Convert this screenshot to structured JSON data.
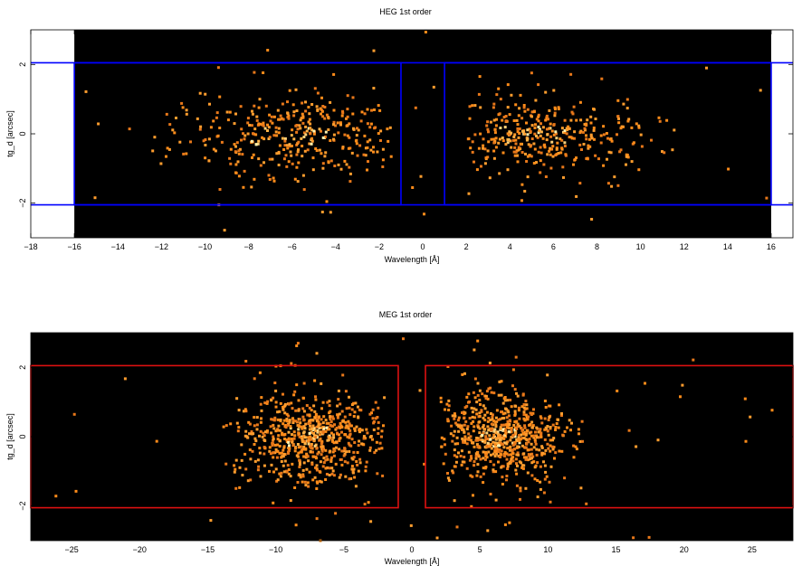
{
  "chart_data": [
    {
      "type": "heatmap",
      "title": "HEG 1st order",
      "xlabel": "Wavelength [Å]",
      "ylabel": "tg_d [arcsec]",
      "xlim": [
        -18,
        17
      ],
      "ylim": [
        -3,
        3
      ],
      "data_xlim": [
        -16,
        16
      ],
      "xticks": [
        -18,
        -16,
        -14,
        -12,
        -10,
        -8,
        -6,
        -4,
        -2,
        0,
        2,
        4,
        6,
        8,
        10,
        12,
        14,
        16
      ],
      "yticks": [
        -2,
        0,
        2
      ],
      "x_tick_labels": [
        "−18",
        "−16",
        "−14",
        "−12",
        "−10",
        "−8",
        "−6",
        "−4",
        "−2",
        "0",
        "2",
        "4",
        "6",
        "8",
        "10",
        "12",
        "14",
        "16"
      ],
      "y_tick_labels": [
        "−2",
        "0",
        "2"
      ],
      "extraction_regions": [
        {
          "x": [
            -16,
            -1
          ],
          "y": [
            -2.05,
            2.05
          ],
          "color": "#0000ff"
        },
        {
          "x": [
            1,
            16
          ],
          "y": [
            -2.05,
            2.05
          ],
          "color": "#0000ff"
        }
      ],
      "clusters": [
        {
          "x_center": -6,
          "x_spread": 3.2,
          "x_min": -12.5,
          "x_max": -1.5,
          "y_spread": 0.55
        },
        {
          "x_center": 5,
          "x_spread": 2.6,
          "x_min": 2,
          "x_max": 12,
          "y_spread": 0.5
        }
      ],
      "background_color": "#000000"
    },
    {
      "type": "heatmap",
      "title": "MEG 1st order",
      "xlabel": "Wavelength [Å]",
      "ylabel": "tg_d [arcsec]",
      "xlim": [
        -28,
        28
      ],
      "ylim": [
        -3,
        3
      ],
      "xticks": [
        -25,
        -20,
        -15,
        -10,
        -5,
        0,
        5,
        10,
        15,
        20,
        25
      ],
      "yticks": [
        -2,
        0,
        2
      ],
      "x_tick_labels": [
        "−25",
        "−20",
        "−15",
        "−10",
        "−5",
        "0",
        "5",
        "10",
        "15",
        "20",
        "25"
      ],
      "y_tick_labels": [
        "−2",
        "0",
        "2"
      ],
      "extraction_regions": [
        {
          "x": [
            -28,
            -1
          ],
          "y": [
            -2.05,
            2.05
          ],
          "color": "#dd1111"
        },
        {
          "x": [
            1,
            28
          ],
          "y": [
            -2.05,
            2.05
          ],
          "color": "#dd1111"
        }
      ],
      "clusters": [
        {
          "x_center": -7.5,
          "x_spread": 2.8,
          "x_min": -14,
          "x_max": -2,
          "y_spread": 0.6
        },
        {
          "x_center": 6.5,
          "x_spread": 2.4,
          "x_min": 2,
          "x_max": 13,
          "y_spread": 0.55
        }
      ],
      "background_color": "#000000"
    }
  ]
}
